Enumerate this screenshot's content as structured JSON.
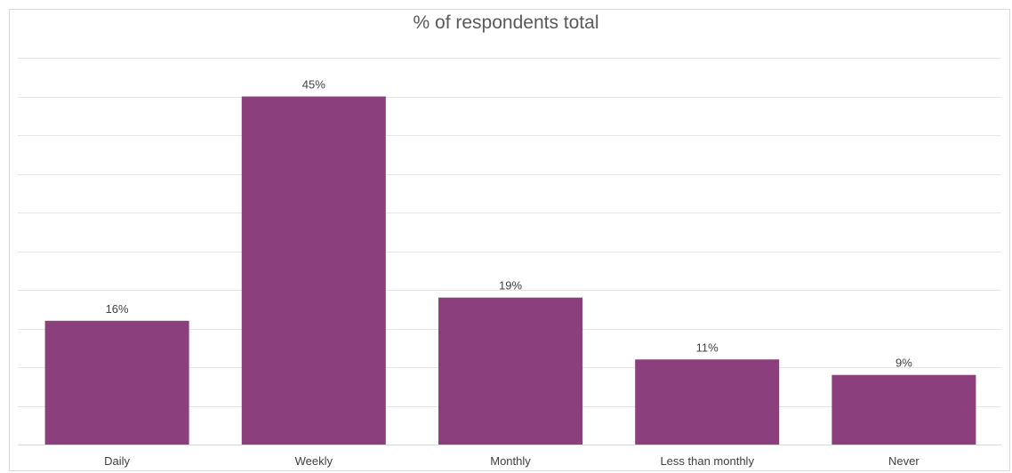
{
  "chart_data": {
    "type": "bar",
    "title": "% of respondents total",
    "xlabel": "",
    "ylabel": "",
    "categories": [
      "Daily",
      "Weekly",
      "Monthly",
      "Less than monthly",
      "Never"
    ],
    "values": [
      16,
      45,
      19,
      11,
      9
    ],
    "data_labels": [
      "16%",
      "45%",
      "19%",
      "11%",
      "9%"
    ],
    "ylim": [
      0,
      50
    ],
    "grid": true,
    "legend": "none",
    "bar_color": "#8b3f7c",
    "grid_color": "#e6e6e6",
    "axis_color": "#d9d9d9"
  }
}
